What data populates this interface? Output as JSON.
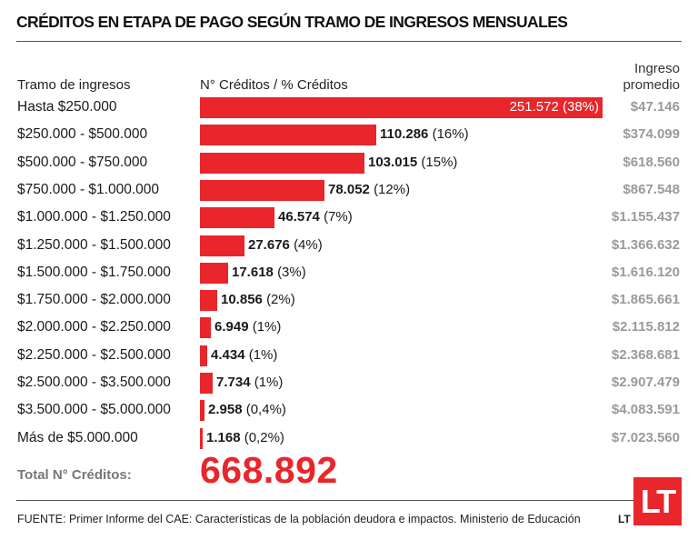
{
  "title": "CRÉDITOS EN ETAPA DE PAGO SEGÚN TRAMO DE INGRESOS MENSUALES",
  "headers": {
    "tramo": "Tramo de ingresos",
    "creditos": "N° Créditos / % Créditos",
    "ingreso_line1": "Ingreso",
    "ingreso_line2": "promedio"
  },
  "total": {
    "label": "Total N° Créditos:",
    "value": "668.892"
  },
  "source": "FUENTE: Primer Informe del CAE: Características de la población deudora e impactos. Ministerio de Educación",
  "logo": {
    "small": "LT",
    "badge": "LT"
  },
  "colors": {
    "bar": "#e8262b",
    "avg_text": "#9a9a9a"
  },
  "chart_data": {
    "type": "bar",
    "orientation": "horizontal",
    "title": "CRÉDITOS EN ETAPA DE PAGO SEGÚN TRAMO DE INGRESOS MENSUALES",
    "xlabel": "N° Créditos / % Créditos",
    "ylabel": "Tramo de ingresos",
    "categories": [
      "Hasta $250.000",
      "$250.000 - $500.000",
      "$500.000 - $750.000",
      "$750.000 - $1.000.000",
      "$1.000.000 - $1.250.000",
      "$1.250.000 - $1.500.000",
      "$1.500.000 - $1.750.000",
      "$1.750.000 - $2.000.000",
      "$2.000.000 - $2.250.000",
      "$2.250.000 - $2.500.000",
      "$2.500.000 - $3.500.000",
      "$3.500.000 - $5.000.000",
      "Más de $5.000.000"
    ],
    "values": [
      251572,
      110286,
      103015,
      78052,
      46574,
      27676,
      17618,
      10856,
      6949,
      4434,
      7734,
      2958,
      1168
    ],
    "value_labels": [
      "251.572",
      "110.286",
      "103.015",
      "78.052",
      "46.574",
      "27.676",
      "17.618",
      "10.856",
      "6.949",
      "4.434",
      "7.734",
      "2.958",
      "1.168"
    ],
    "percent_labels": [
      "(38%)",
      "(16%)",
      "(15%)",
      "(12%)",
      "(7%)",
      "(4%)",
      "(3%)",
      "(2%)",
      "(1%)",
      "(1%)",
      "(1%)",
      "(0,4%)",
      "(0,2%)"
    ],
    "ingreso_promedio_label": "Ingreso promedio",
    "ingreso_promedio": [
      "$47.146",
      "$374.099",
      "$618.560",
      "$867.548",
      "$1.155.437",
      "$1.366.632",
      "$1.616.120",
      "$1.865.661",
      "$2.115.812",
      "$2.368.681",
      "$2.907.479",
      "$4.083.591",
      "$7.023.560"
    ],
    "xlim": [
      0,
      251572
    ]
  }
}
